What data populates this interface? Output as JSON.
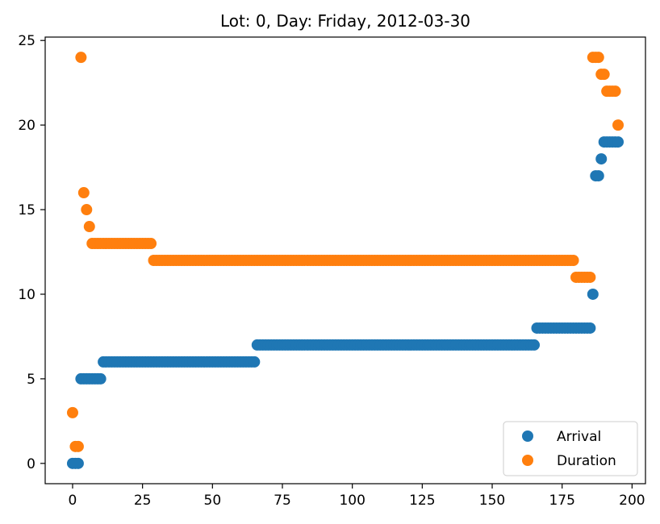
{
  "chart_data": {
    "type": "scatter",
    "title": "Lot: 0, Day: Friday, 2012-03-30",
    "xlabel": "",
    "ylabel": "",
    "xlim": [
      -9.8,
      204.8
    ],
    "ylim": [
      -1.2,
      25.2
    ],
    "xticks": [
      0,
      25,
      50,
      75,
      100,
      125,
      150,
      175,
      200
    ],
    "yticks": [
      0,
      5,
      10,
      15,
      20,
      25
    ],
    "grid": false,
    "legend_position": "lower right",
    "series": [
      {
        "name": "Arrival",
        "color": "#1f77b4",
        "segments": [
          {
            "x_from": 0,
            "x_to": 2,
            "y": 0
          },
          {
            "x_from": 3,
            "x_to": 10,
            "y": 5
          },
          {
            "x_from": 11,
            "x_to": 65,
            "y": 6
          },
          {
            "x_from": 66,
            "x_to": 165,
            "y": 7
          },
          {
            "x_from": 166,
            "x_to": 185,
            "y": 8
          },
          {
            "x_from": 186,
            "x_to": 186,
            "y": 10
          },
          {
            "x_from": 187,
            "x_to": 188,
            "y": 17
          },
          {
            "x_from": 189,
            "x_to": 189,
            "y": 18
          },
          {
            "x_from": 190,
            "x_to": 195,
            "y": 19
          }
        ]
      },
      {
        "name": "Duration",
        "color": "#ff7f0e",
        "segments": [
          {
            "x_from": 0,
            "x_to": 0,
            "y": 3
          },
          {
            "x_from": 1,
            "x_to": 2,
            "y": 1
          },
          {
            "x_from": 3,
            "x_to": 3,
            "y": 24
          },
          {
            "x_from": 4,
            "x_to": 4,
            "y": 16
          },
          {
            "x_from": 5,
            "x_to": 5,
            "y": 15
          },
          {
            "x_from": 6,
            "x_to": 6,
            "y": 14
          },
          {
            "x_from": 7,
            "x_to": 28,
            "y": 13
          },
          {
            "x_from": 29,
            "x_to": 179,
            "y": 12
          },
          {
            "x_from": 180,
            "x_to": 185,
            "y": 11
          },
          {
            "x_from": 186,
            "x_to": 188,
            "y": 24
          },
          {
            "x_from": 189,
            "x_to": 190,
            "y": 23
          },
          {
            "x_from": 191,
            "x_to": 194,
            "y": 22
          },
          {
            "x_from": 195,
            "x_to": 195,
            "y": 20
          }
        ]
      }
    ]
  }
}
